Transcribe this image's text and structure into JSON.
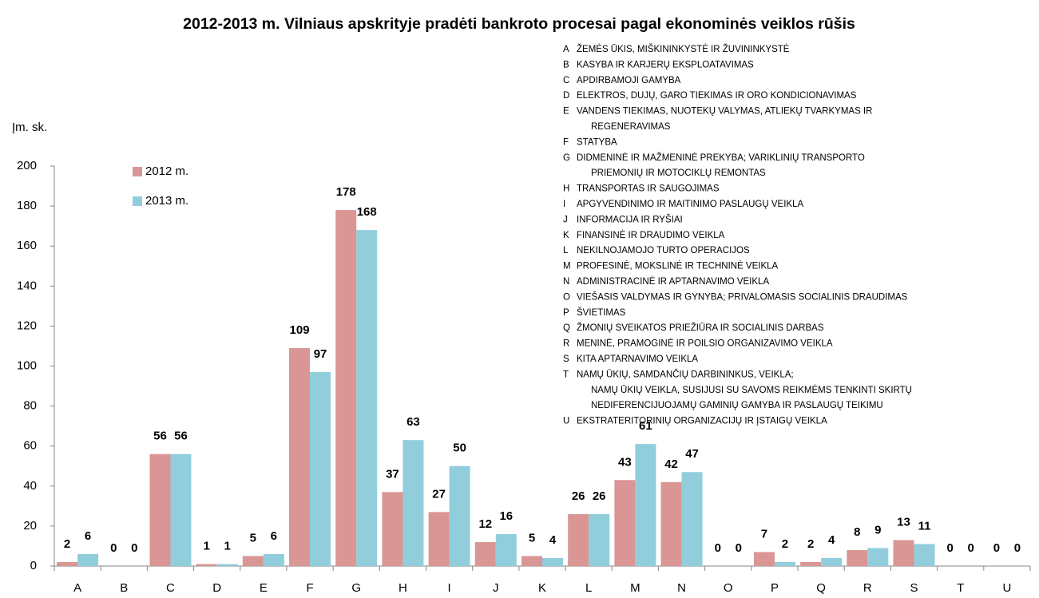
{
  "chart_data": {
    "type": "bar",
    "title": "2012-2013 m. Vilniaus apskrityje pradėti bankroto procesai pagal ekonominės veiklos rūšis",
    "y_label": "Įm. sk.",
    "categories": [
      "A",
      "B",
      "C",
      "D",
      "E",
      "F",
      "G",
      "H",
      "I",
      "J",
      "K",
      "L",
      "M",
      "N",
      "O",
      "P",
      "Q",
      "R",
      "S",
      "T",
      "U"
    ],
    "series": [
      {
        "name": "2012 m.",
        "color": "#d99694",
        "values": [
          2,
          0,
          56,
          1,
          5,
          109,
          178,
          37,
          27,
          12,
          5,
          26,
          43,
          42,
          0,
          7,
          2,
          8,
          13,
          0,
          0
        ]
      },
      {
        "name": "2013 m.",
        "color": "#92cddc",
        "values": [
          6,
          0,
          56,
          1,
          6,
          97,
          168,
          63,
          50,
          16,
          4,
          26,
          61,
          47,
          0,
          2,
          4,
          9,
          11,
          0,
          0
        ]
      }
    ],
    "ylim": [
      0,
      200
    ],
    "yticks": [
      0,
      20,
      40,
      60,
      80,
      100,
      120,
      140,
      160,
      180,
      200
    ],
    "category_legend": [
      {
        "code": "A",
        "lines": [
          "ŽEMĖS ŪKIS, MIŠKININKYSTĖ IR ŽUVININKYSTĖ"
        ]
      },
      {
        "code": "B",
        "lines": [
          "KASYBA IR KARJERŲ EKSPLOATAVIMAS"
        ]
      },
      {
        "code": "C",
        "lines": [
          "APDIRBAMOJI GAMYBA"
        ]
      },
      {
        "code": "D",
        "lines": [
          "ELEKTROS, DUJŲ, GARO TIEKIMAS IR ORO KONDICIONAVIMAS"
        ]
      },
      {
        "code": "E",
        "lines": [
          "VANDENS TIEKIMAS, NUOTEKŲ VALYMAS, ATLIEKŲ TVARKYMAS IR",
          "REGENERAVIMAS"
        ]
      },
      {
        "code": "F",
        "lines": [
          "STATYBA"
        ]
      },
      {
        "code": "G",
        "lines": [
          "DIDMENINĖ IR MAŽMENINĖ PREKYBA; VARIKLINIŲ TRANSPORTO",
          "PRIEMONIŲ IR MOTOCIKLŲ REMONTAS"
        ]
      },
      {
        "code": "H",
        "lines": [
          "TRANSPORTAS IR SAUGOJIMAS"
        ]
      },
      {
        "code": "I",
        "lines": [
          "APGYVENDINIMO IR MAITINIMO PASLAUGŲ VEIKLA"
        ]
      },
      {
        "code": "J",
        "lines": [
          "INFORMACIJA IR RYŠIAI"
        ]
      },
      {
        "code": "K",
        "lines": [
          "FINANSINĖ IR DRAUDIMO VEIKLA"
        ]
      },
      {
        "code": "L",
        "lines": [
          "NEKILNOJAMOJO TURTO OPERACIJOS"
        ]
      },
      {
        "code": "M",
        "lines": [
          "PROFESINĖ, MOKSLINĖ IR TECHNINĖ VEIKLA"
        ]
      },
      {
        "code": "N",
        "lines": [
          "ADMINISTRACINĖ IR APTARNAVIMO VEIKLA"
        ]
      },
      {
        "code": "O",
        "lines": [
          "VIEŠASIS VALDYMAS IR GYNYBA; PRIVALOMASIS SOCIALINIS DRAUDIMAS"
        ]
      },
      {
        "code": "P",
        "lines": [
          "ŠVIETIMAS"
        ]
      },
      {
        "code": "Q",
        "lines": [
          "ŽMONIŲ SVEIKATOS PRIEŽIŪRA IR SOCIALINIS DARBAS"
        ]
      },
      {
        "code": "R",
        "lines": [
          "MENINĖ, PRAMOGINĖ IR POILSIO ORGANIZAVIMO VEIKLA"
        ]
      },
      {
        "code": "S",
        "lines": [
          "KITA APTARNAVIMO VEIKLA"
        ]
      },
      {
        "code": "T",
        "lines": [
          "NAMŲ ŪKIŲ, SAMDANČIŲ DARBININKUS, VEIKLA;",
          "NAMŲ ŪKIŲ VEIKLA, SUSIJUSI SU SAVOMS REIKMĖMS TENKINTI SKIRTŲ",
          "NEDIFERENCIJUOJAMŲ GAMINIŲ GAMYBA IR PASLAUGŲ TEIKIMU"
        ]
      },
      {
        "code": "U",
        "lines": [
          "EKSTRATERITORINIŲ ORGANIZACIJŲ IR ĮSTAIGŲ VEIKLA"
        ]
      }
    ]
  }
}
